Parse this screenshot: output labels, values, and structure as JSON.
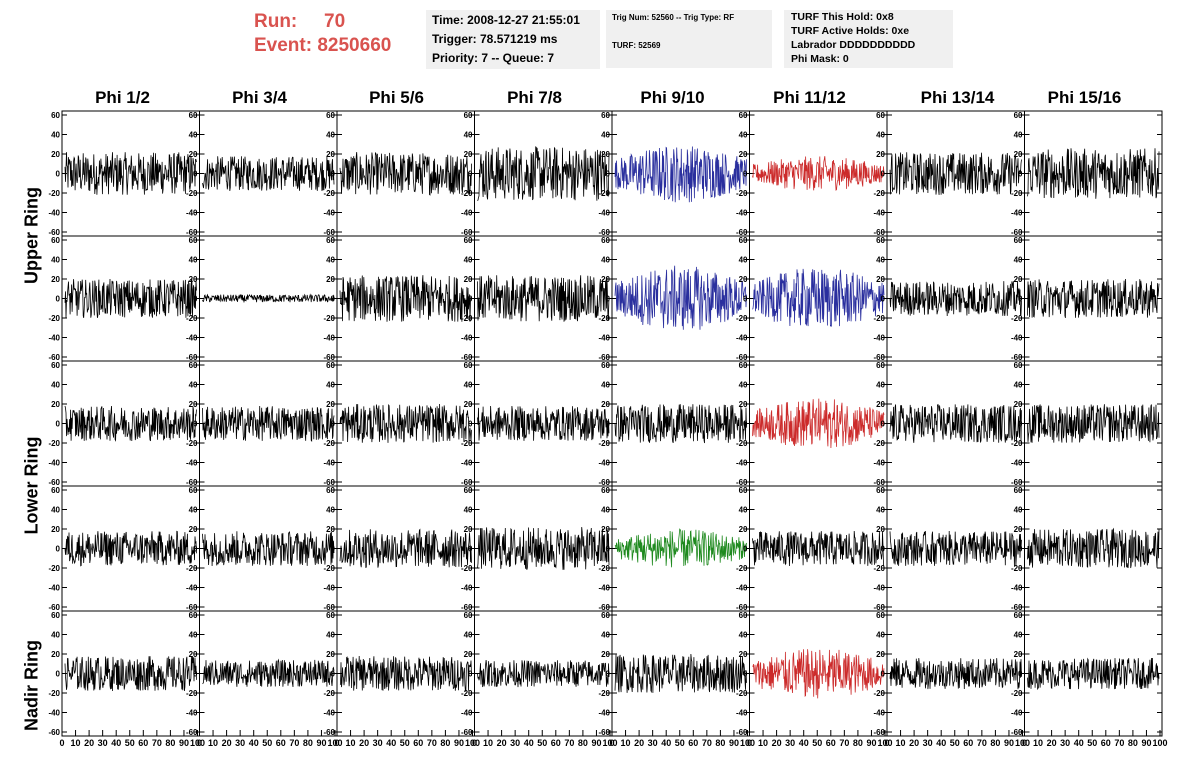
{
  "header": {
    "run_label": "Run:",
    "run_value": "70",
    "event_label": "Event:",
    "event_value": "8250660",
    "time": "Time: 2008-12-27 21:55:01",
    "trigger": "Trigger: 78.571219 ms",
    "priority": "Priority: 7 -- Queue: 7",
    "trig_num": "Trig Num: 52560 -- Trig Type: RF",
    "turf": "TURF: 52569",
    "turf_this_hold": "TURF This Hold: 0x8",
    "turf_active_holds": "TURF Active Holds: 0xe",
    "labrador": "Labrador DDDDDDDDDD",
    "phi_mask": "Phi Mask: 0"
  },
  "columns": [
    "Phi 1/2",
    "Phi 3/4",
    "Phi 5/6",
    "Phi 7/8",
    "Phi 9/10",
    "Phi 11/12",
    "Phi 13/14",
    "Phi 15/16"
  ],
  "rings": [
    "Upper Ring",
    "Lower Ring",
    "Nadir Ring"
  ],
  "chart_data": {
    "type": "line",
    "ylim": [
      -60,
      60
    ],
    "xlim": [
      0,
      100
    ],
    "y_ticks": [
      -60,
      -40,
      -20,
      0,
      20,
      40,
      60
    ],
    "x_ticks": [
      0,
      10,
      20,
      30,
      40,
      50,
      60,
      70,
      80,
      90,
      100
    ],
    "grid": false,
    "rows": 5,
    "cols": 8,
    "amplitudes": [
      [
        22,
        18,
        22,
        28,
        30,
        18,
        22,
        26
      ],
      [
        20,
        4,
        24,
        24,
        34,
        32,
        18,
        20
      ],
      [
        18,
        18,
        20,
        18,
        20,
        26,
        20,
        20
      ],
      [
        18,
        18,
        20,
        22,
        20,
        18,
        18,
        20
      ],
      [
        18,
        14,
        18,
        14,
        20,
        26,
        16,
        16
      ]
    ],
    "colors": [
      [
        "#000000",
        "#000000",
        "#000000",
        "#000000",
        "#2a2f9e",
        "#cc2b2b",
        "#000000",
        "#000000"
      ],
      [
        "#000000",
        "#000000",
        "#000000",
        "#000000",
        "#2a2f9e",
        "#2a2f9e",
        "#000000",
        "#000000"
      ],
      [
        "#000000",
        "#000000",
        "#000000",
        "#000000",
        "#000000",
        "#cc2b2b",
        "#000000",
        "#000000"
      ],
      [
        "#000000",
        "#000000",
        "#000000",
        "#000000",
        "#1f8a1f",
        "#000000",
        "#000000",
        "#000000"
      ],
      [
        "#000000",
        "#000000",
        "#000000",
        "#000000",
        "#000000",
        "#cc2b2b",
        "#000000",
        "#000000"
      ]
    ]
  }
}
